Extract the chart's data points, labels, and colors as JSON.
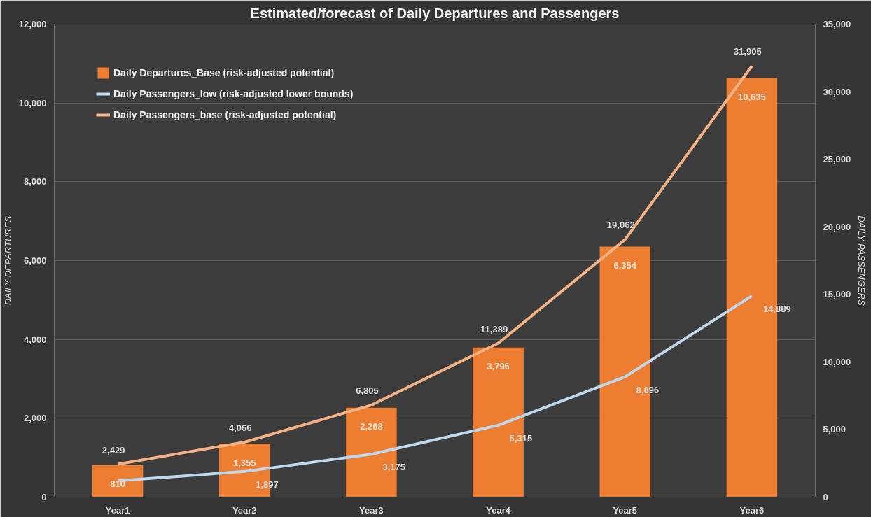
{
  "chart_data": {
    "type": "bar",
    "title": "Estimated/forecast of Daily Departures and Passengers",
    "categories": [
      "Year1",
      "Year2",
      "Year3",
      "Year4",
      "Year5",
      "Year6"
    ],
    "ylabel": "DAILY DEPARTURES",
    "y2label": "DAILY PASSENGERS",
    "series": [
      {
        "name": "Daily Departures_Base (risk-adjusted potential)",
        "color": "#ed7d31",
        "values": [
          810,
          1355,
          2268,
          3796,
          6354,
          10635
        ],
        "value_labels": [
          "810",
          "1,355",
          "2,268",
          "3,796",
          "6,354",
          "10,635"
        ]
      },
      {
        "name": "Daily Passengers_low (risk-adjusted lower bounds)",
        "type": "line",
        "axis": "y2",
        "color": "#bdd7ee",
        "values": [
          1200,
          1897,
          3175,
          5315,
          8896,
          14889
        ],
        "value_labels": [
          null,
          "1,897",
          "3,175",
          "5,315",
          "8,896",
          "14,889"
        ]
      },
      {
        "name": "Daily Passengers_base (risk-adjusted potential)",
        "type": "line",
        "axis": "y2",
        "color": "#f4b183",
        "values": [
          2429,
          4066,
          6805,
          11389,
          19062,
          31905
        ],
        "value_labels": [
          "2,429",
          "4,066",
          "6,805",
          "11,389",
          "19,062",
          "31,905"
        ]
      }
    ],
    "ylim": [
      0,
      12000
    ],
    "yticks": [
      {
        "value": 0,
        "label": "0"
      },
      {
        "value": 2000,
        "label": "2,000"
      },
      {
        "value": 4000,
        "label": "4,000"
      },
      {
        "value": 6000,
        "label": "6,000"
      },
      {
        "value": 8000,
        "label": "8,000"
      },
      {
        "value": 10000,
        "label": "10,000"
      },
      {
        "value": 12000,
        "label": "12,000"
      }
    ],
    "y2lim": [
      0,
      35000
    ],
    "y2ticks": [
      {
        "value": 0,
        "label": "0"
      },
      {
        "value": 5000,
        "label": "5,000"
      },
      {
        "value": 10000,
        "label": "10,000"
      },
      {
        "value": 15000,
        "label": "15,000"
      },
      {
        "value": 20000,
        "label": "20,000"
      },
      {
        "value": 25000,
        "label": "25,000"
      },
      {
        "value": 30000,
        "label": "30,000"
      },
      {
        "value": 35000,
        "label": "35,000"
      }
    ],
    "grid": "y",
    "legend": "top left",
    "line_style": "solid"
  }
}
